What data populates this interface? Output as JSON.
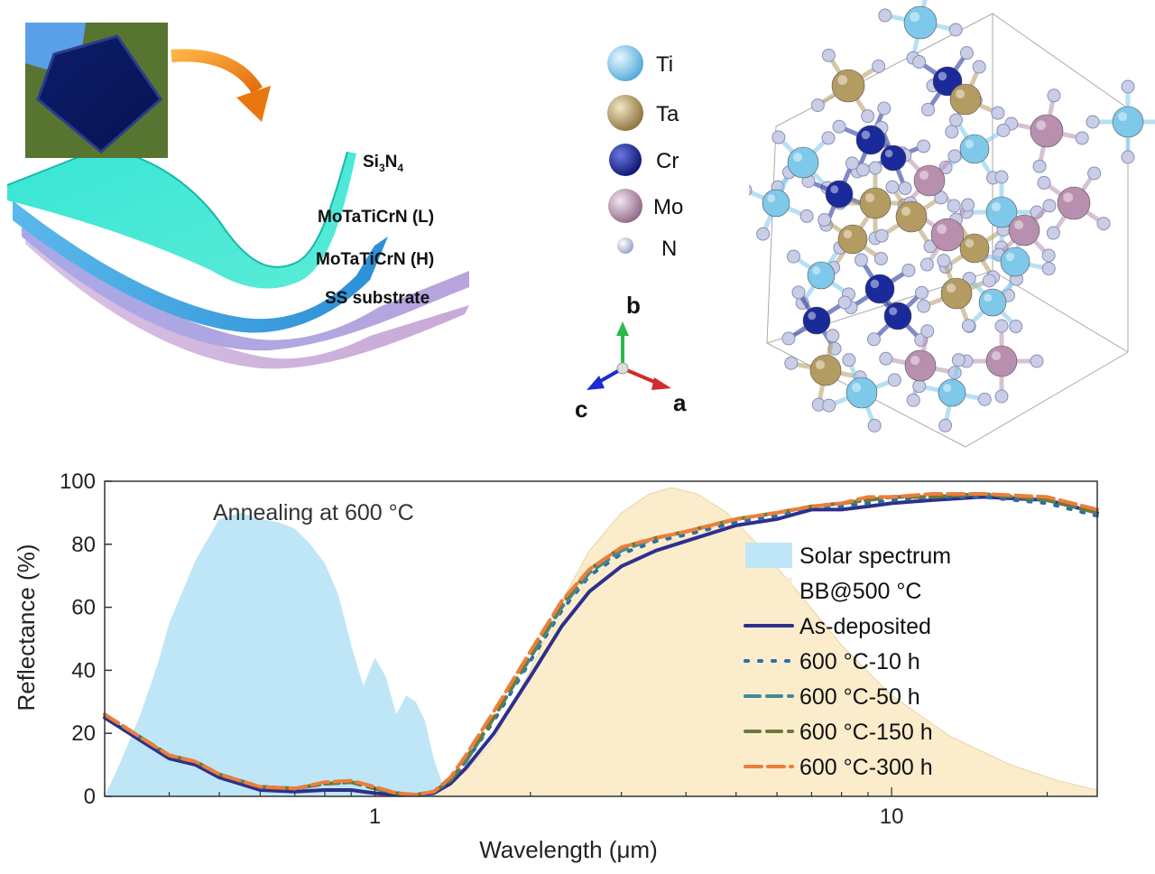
{
  "layers": {
    "si3n4_base": "Si",
    "si3n4_sub1": "3",
    "si3n4_mid": "N",
    "si3n4_sub2": "4",
    "low": "MoTaTiCrN (L)",
    "high": "MoTaTiCrN (H)",
    "substrate": "SS substrate"
  },
  "elements": [
    {
      "symbol": "Ti",
      "color": "#7ec8ea"
    },
    {
      "symbol": "Ta",
      "color": "#b49b62"
    },
    {
      "symbol": "Cr",
      "color": "#1a2a9a"
    },
    {
      "symbol": "Mo",
      "color": "#b88faf"
    },
    {
      "symbol": "N",
      "color": "#c9cde6"
    }
  ],
  "axes_labels": {
    "a": "a",
    "b": "b",
    "c": "c"
  },
  "chart_data": {
    "type": "line",
    "xlabel": "Wavelength (μm)",
    "ylabel": "Reflectance (%)",
    "xscale": "log",
    "xlim": [
      0.3,
      25
    ],
    "ylim": [
      0,
      100
    ],
    "x_ticks": [
      1,
      10
    ],
    "y_ticks": [
      0,
      20,
      40,
      60,
      80,
      100
    ],
    "annotation": "Annealing at 600 °C",
    "legend_position": "center-right",
    "fills": [
      {
        "name": "Solar spectrum",
        "color": "#bfe6f6",
        "x": [
          0.3,
          0.32,
          0.35,
          0.38,
          0.4,
          0.45,
          0.5,
          0.55,
          0.6,
          0.65,
          0.7,
          0.75,
          0.8,
          0.85,
          0.9,
          0.95,
          1.0,
          1.05,
          1.1,
          1.15,
          1.2,
          1.25,
          1.3,
          1.35,
          1.4
        ],
        "y": [
          0,
          10,
          25,
          42,
          55,
          75,
          88,
          90,
          88,
          87,
          85,
          80,
          74,
          64,
          48,
          35,
          44,
          38,
          26,
          32,
          30,
          24,
          12,
          4,
          0
        ]
      },
      {
        "name": "BB@500 °C",
        "color": "#fbeccb",
        "x": [
          1.3,
          1.5,
          1.7,
          2.0,
          2.3,
          2.6,
          3.0,
          3.4,
          3.75,
          4.2,
          4.8,
          5.5,
          6.5,
          8,
          10,
          13,
          17,
          21,
          25
        ],
        "y": [
          0,
          8,
          18,
          40,
          62,
          78,
          90,
          96,
          98,
          96,
          90,
          80,
          66,
          48,
          32,
          19,
          10,
          5,
          2
        ]
      }
    ],
    "series": [
      {
        "name": "As-deposited",
        "color": "#2e2f8c",
        "dash": "solid",
        "x": [
          0.3,
          0.35,
          0.4,
          0.45,
          0.5,
          0.6,
          0.7,
          0.8,
          0.9,
          1.0,
          1.1,
          1.2,
          1.3,
          1.4,
          1.5,
          1.7,
          2.0,
          2.3,
          2.6,
          3.0,
          3.5,
          4.0,
          5.0,
          6.0,
          7.0,
          8.0,
          9.0,
          10,
          12,
          15,
          20,
          25
        ],
        "y": [
          25,
          18,
          12,
          10,
          6,
          2,
          1.5,
          2,
          2,
          1,
          0.5,
          0.5,
          1,
          4,
          9,
          20,
          38,
          54,
          65,
          73,
          78,
          81,
          86,
          88,
          91,
          91,
          92,
          93,
          94,
          95,
          94,
          90
        ]
      },
      {
        "name": "600 °C-10 h",
        "color": "#2a6fa5",
        "dash": "dot",
        "x": [
          0.3,
          0.35,
          0.4,
          0.45,
          0.5,
          0.6,
          0.7,
          0.8,
          0.9,
          1.0,
          1.1,
          1.2,
          1.3,
          1.4,
          1.5,
          1.7,
          2.0,
          2.3,
          2.6,
          3.0,
          3.5,
          4.0,
          5.0,
          6.0,
          7.0,
          8.0,
          9.0,
          10,
          12,
          15,
          20,
          25
        ],
        "y": [
          26,
          19,
          13,
          11,
          7,
          3,
          2.5,
          4,
          4.5,
          2.5,
          1,
          0.5,
          1.5,
          5,
          11,
          24,
          43,
          59,
          70,
          77,
          81,
          83,
          87,
          89,
          92,
          92,
          93,
          94,
          95,
          95,
          93,
          89
        ]
      },
      {
        "name": "600 °C-50 h",
        "color": "#3f8b94",
        "dash": "dash",
        "x": [
          0.3,
          0.35,
          0.4,
          0.45,
          0.5,
          0.6,
          0.7,
          0.8,
          0.9,
          1.0,
          1.1,
          1.2,
          1.3,
          1.4,
          1.5,
          1.7,
          2.0,
          2.3,
          2.6,
          3.0,
          3.5,
          4.0,
          5.0,
          6.0,
          7.0,
          8.0,
          9.0,
          10,
          12,
          15,
          20,
          25
        ],
        "y": [
          26,
          19,
          13,
          11,
          7,
          3,
          2.5,
          4,
          4.5,
          2.5,
          1,
          0.5,
          1.5,
          5,
          11,
          25,
          44,
          60,
          71,
          78,
          82,
          84,
          88,
          90,
          92,
          93,
          94,
          95,
          95,
          96,
          94,
          90
        ]
      },
      {
        "name": "600 °C-150 h",
        "color": "#6b7a3a",
        "dash": "dash",
        "x": [
          0.3,
          0.35,
          0.4,
          0.45,
          0.5,
          0.6,
          0.7,
          0.8,
          0.9,
          1.0,
          1.1,
          1.2,
          1.3,
          1.4,
          1.5,
          1.7,
          2.0,
          2.3,
          2.6,
          3.0,
          3.5,
          4.0,
          5.0,
          6.0,
          7.0,
          8.0,
          9.0,
          10,
          12,
          15,
          20,
          25
        ],
        "y": [
          26,
          19,
          13,
          11,
          7,
          3,
          2.5,
          4,
          4.5,
          2.5,
          1,
          0.5,
          1.5,
          5,
          12,
          25,
          45,
          61,
          72,
          79,
          82,
          84,
          88,
          90,
          92,
          93,
          94,
          95,
          95,
          96,
          94,
          90
        ]
      },
      {
        "name": "600 °C-300 h",
        "color": "#ee7d3a",
        "dash": "longdash",
        "x": [
          0.3,
          0.35,
          0.4,
          0.45,
          0.5,
          0.6,
          0.7,
          0.8,
          0.9,
          1.0,
          1.1,
          1.2,
          1.3,
          1.4,
          1.5,
          1.7,
          2.0,
          2.3,
          2.6,
          3.0,
          3.5,
          4.0,
          5.0,
          6.0,
          7.0,
          8.0,
          9.0,
          10,
          12,
          15,
          20,
          25
        ],
        "y": [
          26,
          19,
          13,
          11,
          7,
          3,
          2.5,
          4.5,
          5,
          3,
          1,
          0.5,
          1.5,
          6,
          13,
          27,
          46,
          62,
          72,
          79,
          82,
          84,
          88,
          90,
          92,
          93,
          95,
          95,
          96,
          96,
          95,
          91
        ]
      }
    ]
  }
}
